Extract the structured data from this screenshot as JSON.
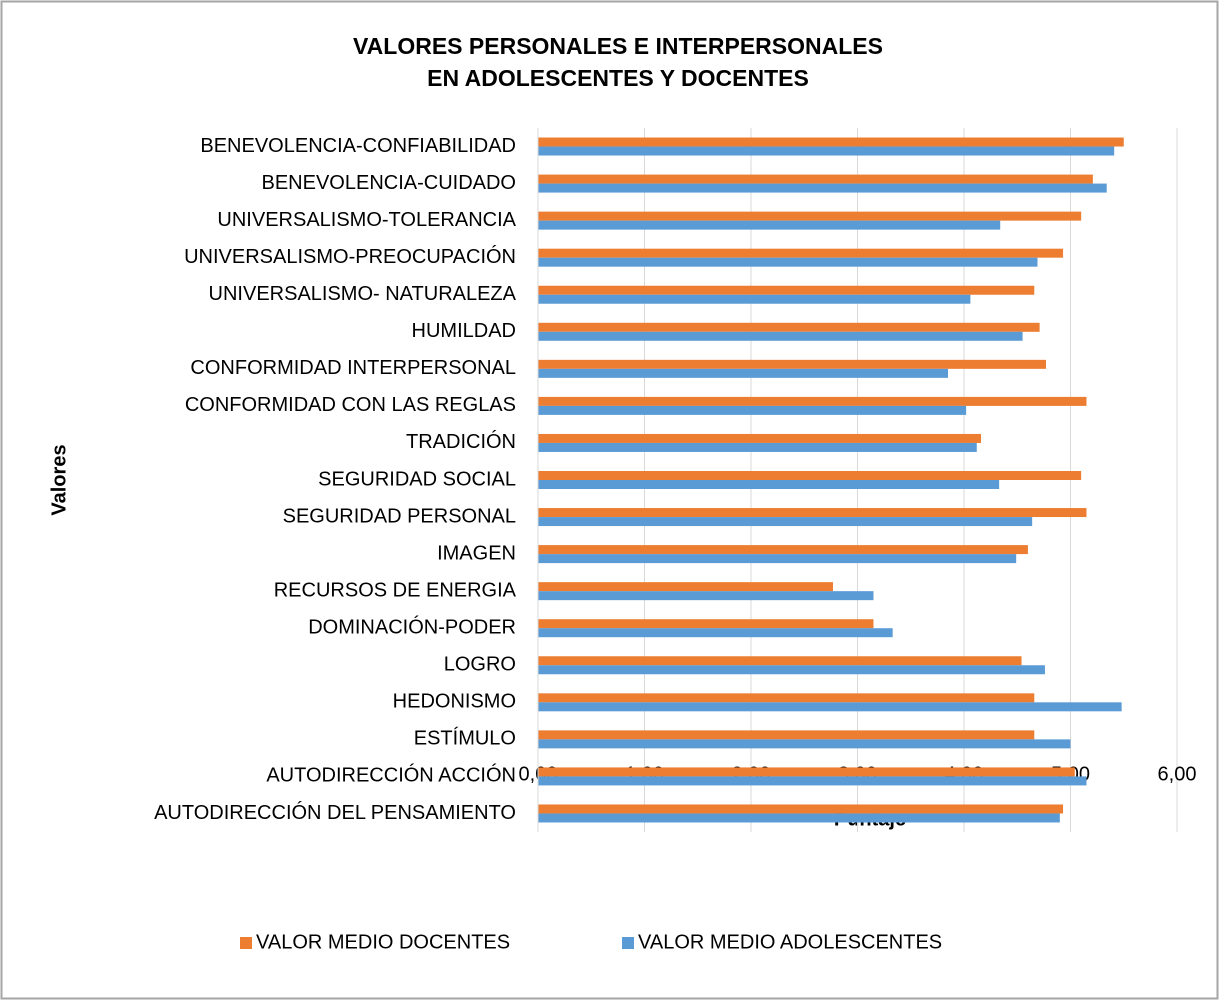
{
  "chart_data": {
    "type": "bar",
    "orientation": "horizontal",
    "title": "VALORES PERSONALES E INTERPERSONALES",
    "subtitle": "EN ADOLESCENTES Y DOCENTES",
    "x_label": "Puntaje",
    "y_label": "Valores",
    "categories": [
      "BENEVOLENCIA-CONFIABILIDAD",
      "BENEVOLENCIA-CUIDADO",
      "UNIVERSALISMO-TOLERANCIA",
      "UNIVERSALISMO-PREOCUPACIÓN",
      "UNIVERSALISMO- NATURALEZA ",
      "HUMILDAD",
      "CONFORMIDAD INTERPERSONAL",
      "CONFORMIDAD CON LAS REGLAS",
      "TRADICIÓN",
      "SEGURIDAD SOCIAL",
      "SEGURIDAD PERSONAL",
      "IMAGEN",
      "RECURSOS DE ENERGIA",
      "DOMINACIÓN-PODER",
      "LOGRO",
      "HEDONISMO",
      "ESTÍMULO",
      "AUTODIRECCIÓN ACCIÓN",
      "AUTODIRECCIÓN DEL PENSAMIENTO"
    ],
    "series": [
      {
        "name": "VALOR MEDIO DOCENTES",
        "color": "#ed7d31",
        "values": [
          5.5,
          5.21,
          5.1,
          4.93,
          4.66,
          4.71,
          4.77,
          5.15,
          4.16,
          5.1,
          5.15,
          4.6,
          2.77,
          3.15,
          4.54,
          4.66,
          4.66,
          5.04,
          4.93
        ]
      },
      {
        "name": "VALOR MEDIO ADOLESCENTES",
        "color": "#5b9bd5",
        "values": [
          5.41,
          5.34,
          4.34,
          4.69,
          4.06,
          4.55,
          3.85,
          4.02,
          4.12,
          4.33,
          4.64,
          4.49,
          3.15,
          3.33,
          4.76,
          5.48,
          5.0,
          5.15,
          4.9
        ]
      }
    ],
    "xlim": [
      0,
      6
    ],
    "xticks": [
      {
        "value": 0,
        "label": "0,00"
      },
      {
        "value": 1,
        "label": "1,00"
      },
      {
        "value": 2,
        "label": "2,00"
      },
      {
        "value": 3,
        "label": "3,00"
      },
      {
        "value": 4,
        "label": "4,00"
      },
      {
        "value": 5,
        "label": "5,00"
      },
      {
        "value": 6,
        "label": "6,00"
      }
    ],
    "grid": true,
    "legend": "bottom"
  }
}
